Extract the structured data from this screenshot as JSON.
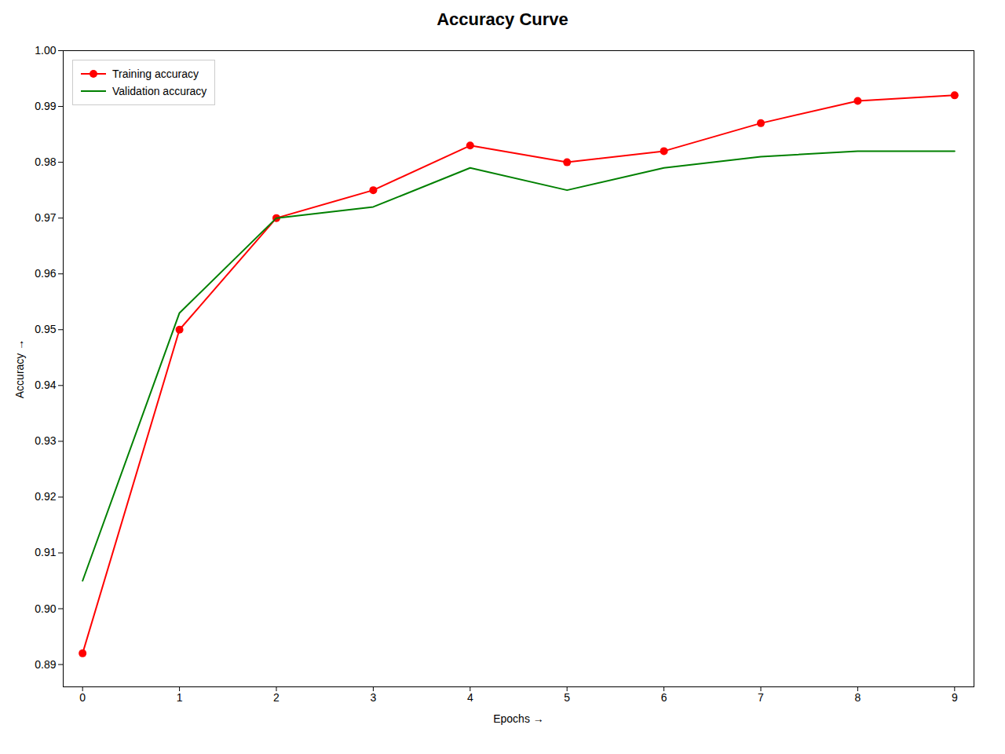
{
  "chart_data": {
    "type": "line",
    "title": "Accuracy Curve",
    "xlabel": "Epochs",
    "ylabel": "Accuracy",
    "x": [
      0,
      1,
      2,
      3,
      4,
      5,
      6,
      7,
      8,
      9
    ],
    "series": [
      {
        "name": "Training accuracy",
        "color": "#ff0000",
        "marker": "circle",
        "values": [
          0.892,
          0.95,
          0.97,
          0.975,
          0.983,
          0.98,
          0.982,
          0.987,
          0.991,
          0.992
        ]
      },
      {
        "name": "Validation accuracy",
        "color": "#008000",
        "values": [
          0.905,
          0.953,
          0.97,
          0.972,
          0.979,
          0.975,
          0.979,
          0.981,
          0.982,
          0.982
        ]
      }
    ],
    "xlim": [
      -0.2,
      9.2
    ],
    "xticks": [
      0,
      1,
      2,
      3,
      4,
      5,
      6,
      7,
      8,
      9
    ],
    "ylim": [
      0.886,
      1.0
    ],
    "yticks": [
      {
        "value": 0.89,
        "label": "0.89"
      },
      {
        "value": 0.9,
        "label": "0.90"
      },
      {
        "value": 0.91,
        "label": "0.91"
      },
      {
        "value": 0.92,
        "label": "0.92"
      },
      {
        "value": 0.93,
        "label": "0.93"
      },
      {
        "value": 0.94,
        "label": "0.94"
      },
      {
        "value": 0.95,
        "label": "0.95"
      },
      {
        "value": 0.96,
        "label": "0.96"
      },
      {
        "value": 0.97,
        "label": "0.97"
      },
      {
        "value": 0.98,
        "label": "0.98"
      },
      {
        "value": 0.99,
        "label": "0.99"
      },
      {
        "value": 1.0,
        "label": "1.00"
      }
    ],
    "grid": false,
    "legend": "upper left"
  }
}
